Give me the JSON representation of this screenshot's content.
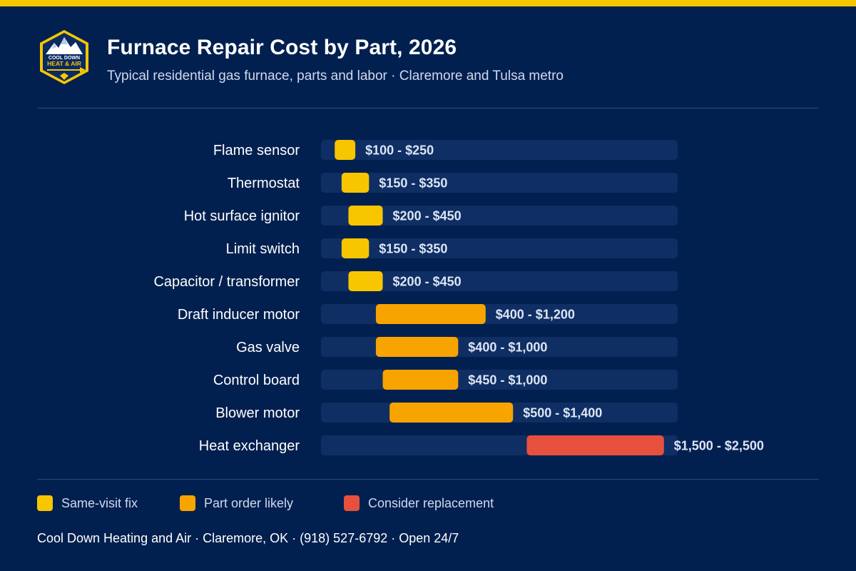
{
  "header": {
    "title": "Furnace Repair Cost by Part, 2026",
    "subtitle": "Typical residential gas furnace, parts and labor · Claremore and Tulsa metro"
  },
  "logo": {
    "line1": "COOL DOWN",
    "line2": "HEAT & AIR"
  },
  "colors": {
    "background": "#02204f",
    "track": "#0f2e63",
    "accent": "#f7c600",
    "same_visit": "#f7c600",
    "part_order": "#f8a400",
    "replacement": "#e8503e"
  },
  "legend": {
    "items": [
      {
        "label": "Same-visit fix",
        "color": "#f7c600"
      },
      {
        "label": "Part order likely",
        "color": "#f8a400"
      },
      {
        "label": "Consider replacement",
        "color": "#e8503e"
      }
    ]
  },
  "footer": {
    "text": "Cool Down Heating and Air · Claremore, OK · (918) 527-6792 · Open 24/7"
  },
  "chart_data": {
    "type": "bar",
    "orientation": "horizontal",
    "style": "range",
    "xlim": [
      0,
      2600
    ],
    "grid": false,
    "legend_position": "bottom",
    "categories": [
      "Flame sensor",
      "Thermostat",
      "Hot surface ignitor",
      "Limit switch",
      "Capacitor / transformer",
      "Draft inducer motor",
      "Gas valve",
      "Control board",
      "Blower motor",
      "Heat exchanger"
    ],
    "ranges": [
      {
        "low": 100,
        "high": 250,
        "label": "$100 - $250",
        "group": "Same-visit fix"
      },
      {
        "low": 150,
        "high": 350,
        "label": "$150 - $350",
        "group": "Same-visit fix"
      },
      {
        "low": 200,
        "high": 450,
        "label": "$200 - $450",
        "group": "Same-visit fix"
      },
      {
        "low": 150,
        "high": 350,
        "label": "$150 - $350",
        "group": "Same-visit fix"
      },
      {
        "low": 200,
        "high": 450,
        "label": "$200 - $450",
        "group": "Same-visit fix"
      },
      {
        "low": 400,
        "high": 1200,
        "label": "$400 - $1,200",
        "group": "Part order likely"
      },
      {
        "low": 400,
        "high": 1000,
        "label": "$400 - $1,000",
        "group": "Part order likely"
      },
      {
        "low": 450,
        "high": 1000,
        "label": "$450 - $1,000",
        "group": "Part order likely"
      },
      {
        "low": 500,
        "high": 1400,
        "label": "$500 - $1,400",
        "group": "Part order likely"
      },
      {
        "low": 1500,
        "high": 2500,
        "label": "$1,500 - $2,500",
        "group": "Consider replacement"
      }
    ]
  }
}
